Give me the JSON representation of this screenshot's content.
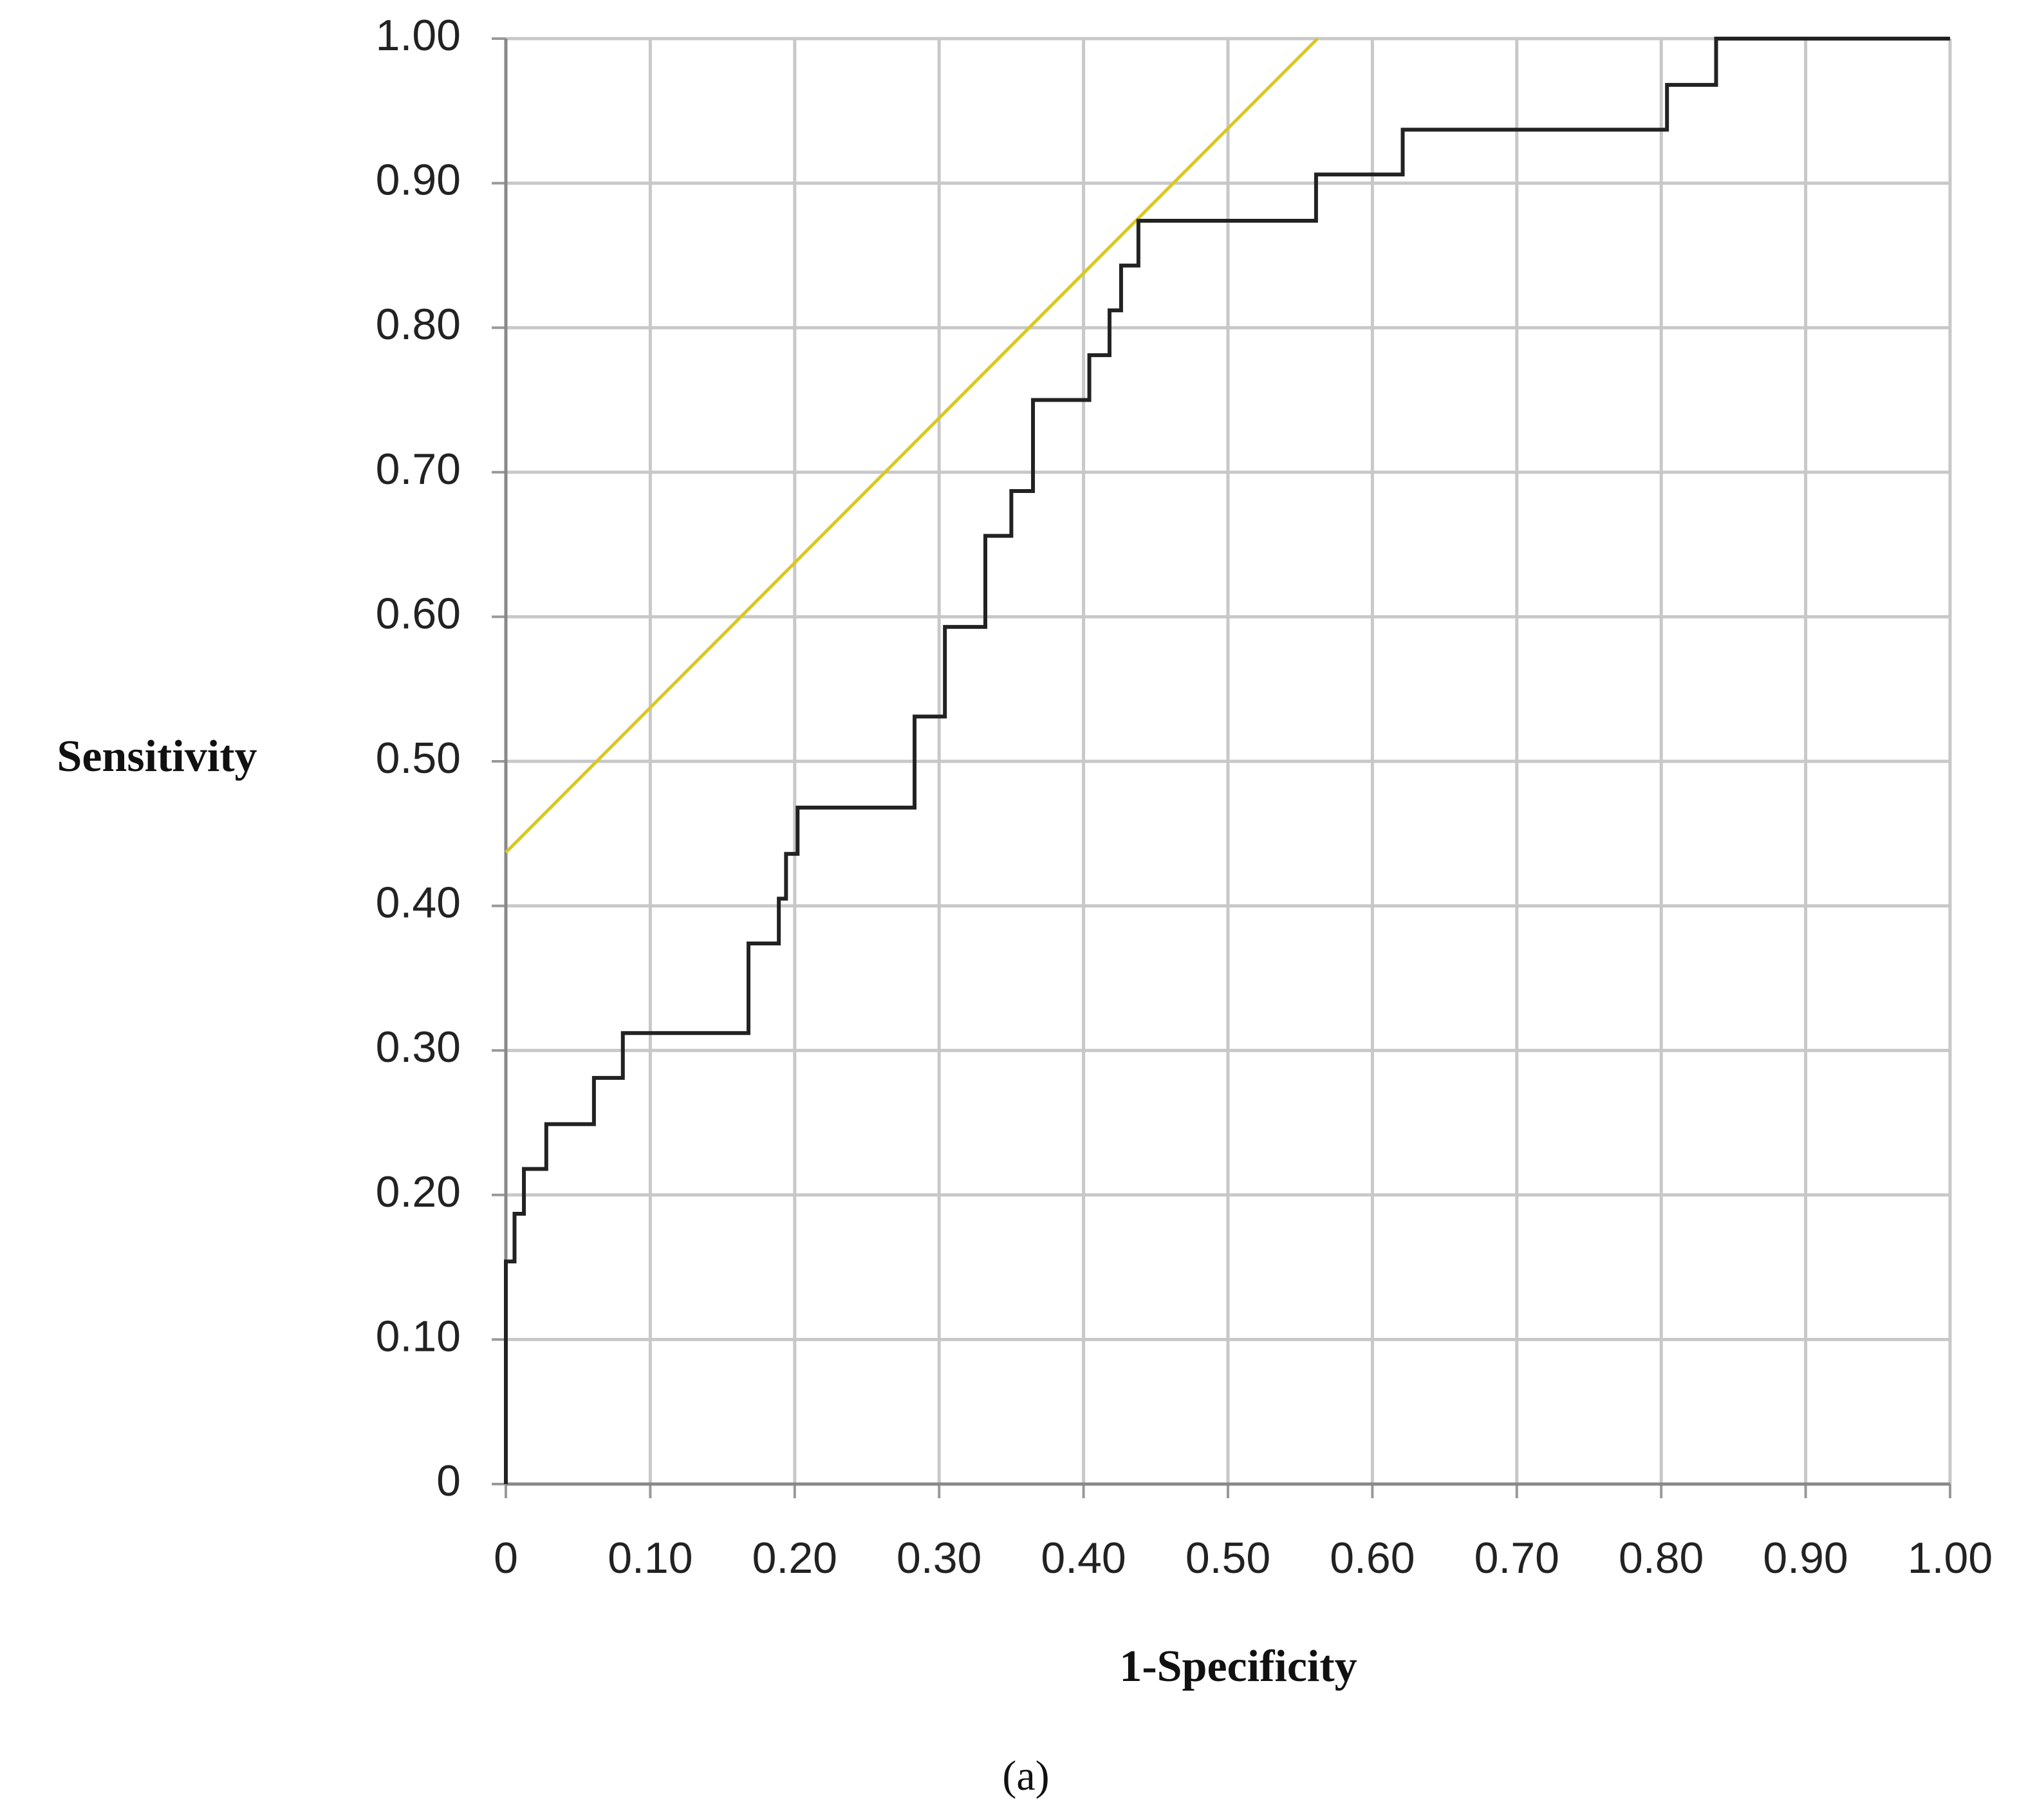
{
  "chart_data": {
    "type": "line",
    "xlabel": "1-Specificity",
    "ylabel": "Sensitivity",
    "caption": "(a)",
    "xlim": [
      0,
      1
    ],
    "ylim": [
      0,
      1
    ],
    "xticks": [
      0,
      {
        "value": 0.1,
        "label": "0.10"
      },
      {
        "value": 0.2,
        "label": "0.20"
      },
      {
        "value": 0.3,
        "label": "0.30"
      },
      {
        "value": 0.4,
        "label": "0.40"
      },
      {
        "value": 0.5,
        "label": "0.50"
      },
      {
        "value": 0.6,
        "label": "0.60"
      },
      {
        "value": 0.7,
        "label": "0.70"
      },
      {
        "value": 0.8,
        "label": "0.80"
      },
      {
        "value": 0.9,
        "label": "0.90"
      },
      {
        "value": 1,
        "label": "1.00"
      }
    ],
    "yticks": [
      0,
      {
        "value": 0.1,
        "label": "0.10"
      },
      {
        "value": 0.2,
        "label": "0.20"
      },
      {
        "value": 0.3,
        "label": "0.30"
      },
      {
        "value": 0.4,
        "label": "0.40"
      },
      {
        "value": 0.5,
        "label": "0.50"
      },
      {
        "value": 0.6,
        "label": "0.60"
      },
      {
        "value": 0.7,
        "label": "0.70"
      },
      {
        "value": 0.8,
        "label": "0.80"
      },
      {
        "value": 0.9,
        "label": "0.90"
      },
      {
        "value": 1,
        "label": "1.00"
      }
    ],
    "grid": true,
    "series": [
      {
        "color": "#222222",
        "x": [
          0,
          0,
          0.006,
          0.006,
          0.0125,
          0.0125,
          0.028,
          0.028,
          0.061,
          0.061,
          0.081,
          0.081,
          0.168,
          0.168,
          0.189,
          0.189,
          0.194,
          0.194,
          0.202,
          0.202,
          0.283,
          0.283,
          0.304,
          0.304,
          0.332,
          0.332,
          0.35,
          0.35,
          0.365,
          0.365,
          0.404,
          0.404,
          0.418,
          0.418,
          0.426,
          0.426,
          0.438,
          0.438,
          0.561,
          0.561,
          0.621,
          0.621,
          0.804,
          0.804,
          0.838,
          0.838,
          1
        ],
        "values": [
          0,
          0.154,
          0.154,
          0.187,
          0.187,
          0.218,
          0.218,
          0.249,
          0.249,
          0.281,
          0.281,
          0.312,
          0.312,
          0.374,
          0.374,
          0.405,
          0.405,
          0.436,
          0.436,
          0.468,
          0.468,
          0.531,
          0.531,
          0.593,
          0.593,
          0.656,
          0.656,
          0.687,
          0.687,
          0.75,
          0.75,
          0.781,
          0.781,
          0.812,
          0.812,
          0.843,
          0.843,
          0.874,
          0.874,
          0.906,
          0.906,
          0.937,
          0.937,
          0.968,
          0.968,
          1,
          1
        ]
      },
      {
        "color": "#d9c820",
        "x": [
          0,
          0.562
        ],
        "values": [
          0.437,
          1
        ]
      }
    ]
  }
}
